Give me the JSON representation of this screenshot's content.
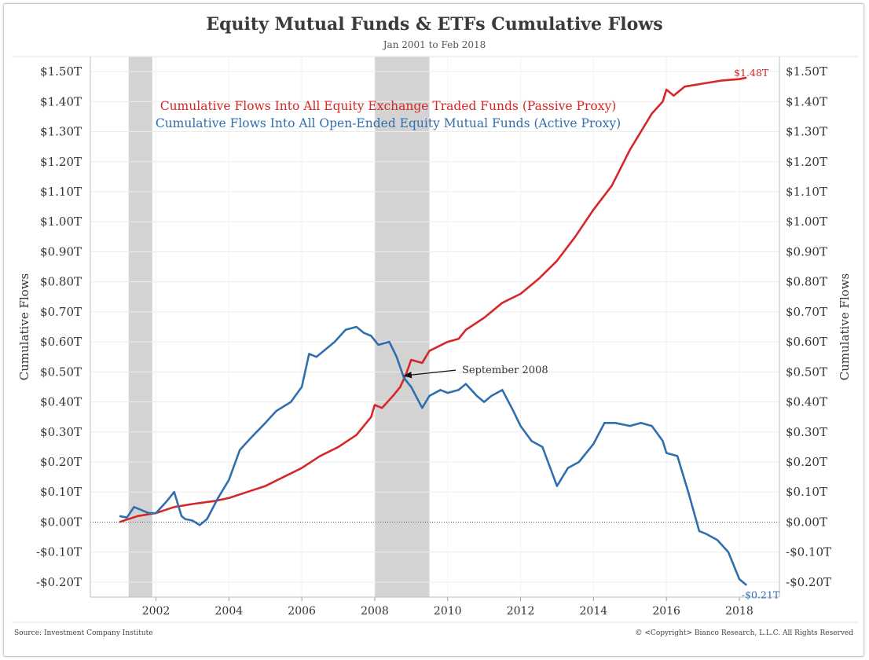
{
  "title": "Equity Mutual Funds & ETFs Cumulative Flows",
  "subtitle": "Jan 2001 to Feb 2018",
  "source": "Source: Investment Company Institute",
  "copyright": "© <Copyright> Bianco Research, L.L.C. All Rights Reserved",
  "colors": {
    "passive": "#d62728",
    "active": "#2f6fae",
    "recession": "#d3d3d3"
  },
  "chart_data": {
    "type": "line",
    "ylabel": "Cumulative Flows",
    "ylim": [
      -0.25,
      1.55
    ],
    "xlim": [
      2000.2,
      2019.1
    ],
    "grid": true,
    "y_ticks": [
      -0.2,
      -0.1,
      0.0,
      0.1,
      0.2,
      0.3,
      0.4,
      0.5,
      0.6,
      0.7,
      0.8,
      0.9,
      1.0,
      1.1,
      1.2,
      1.3,
      1.4,
      1.5
    ],
    "y_tick_labels": [
      "-$0.20T",
      "-$0.10T",
      "$0.00T",
      "$0.10T",
      "$0.20T",
      "$0.30T",
      "$0.40T",
      "$0.50T",
      "$0.60T",
      "$0.70T",
      "$0.80T",
      "$0.90T",
      "$1.00T",
      "$1.10T",
      "$1.20T",
      "$1.30T",
      "$1.40T",
      "$1.50T"
    ],
    "x_ticks": [
      2002,
      2004,
      2006,
      2008,
      2010,
      2012,
      2014,
      2016,
      2018
    ],
    "x_tick_labels": [
      "2002",
      "2004",
      "2006",
      "2008",
      "2010",
      "2012",
      "2014",
      "2016",
      "2018"
    ],
    "recessions": [
      [
        2001.25,
        2001.9
      ],
      [
        2007.99,
        2009.5
      ]
    ],
    "series": [
      {
        "name": "Cumulative Flows Into All Equity Exchange Traded Funds (Passive Proxy)",
        "color": "#d62728",
        "x": [
          2001.0,
          2001.5,
          2002.0,
          2002.5,
          2003.0,
          2003.3,
          2003.6,
          2004.0,
          2004.5,
          2005.0,
          2005.5,
          2006.0,
          2006.5,
          2007.0,
          2007.5,
          2007.9,
          2008.0,
          2008.2,
          2008.5,
          2008.7,
          2008.85,
          2009.0,
          2009.3,
          2009.5,
          2010.0,
          2010.3,
          2010.5,
          2011.0,
          2011.5,
          2012.0,
          2012.5,
          2013.0,
          2013.5,
          2014.0,
          2014.5,
          2015.0,
          2015.3,
          2015.6,
          2015.9,
          2016.0,
          2016.2,
          2016.5,
          2017.0,
          2017.5,
          2018.0,
          2018.2
        ],
        "values": [
          0.0,
          0.02,
          0.03,
          0.05,
          0.06,
          0.065,
          0.07,
          0.08,
          0.1,
          0.12,
          0.15,
          0.18,
          0.22,
          0.25,
          0.29,
          0.35,
          0.39,
          0.38,
          0.42,
          0.45,
          0.49,
          0.54,
          0.53,
          0.57,
          0.6,
          0.61,
          0.64,
          0.68,
          0.73,
          0.76,
          0.81,
          0.87,
          0.95,
          1.04,
          1.12,
          1.24,
          1.3,
          1.36,
          1.4,
          1.44,
          1.42,
          1.45,
          1.46,
          1.47,
          1.475,
          1.48
        ],
        "end_label": "$1.48T"
      },
      {
        "name": "Cumulative Flows Into All Open-Ended Equity Mutual Funds (Active Proxy)",
        "color": "#2f6fae",
        "x": [
          2001.0,
          2001.2,
          2001.4,
          2001.6,
          2001.8,
          2002.0,
          2002.3,
          2002.5,
          2002.7,
          2002.8,
          2003.0,
          2003.2,
          2003.4,
          2003.7,
          2004.0,
          2004.3,
          2004.6,
          2005.0,
          2005.3,
          2005.7,
          2006.0,
          2006.2,
          2006.4,
          2006.6,
          2006.9,
          2007.2,
          2007.5,
          2007.7,
          2007.9,
          2008.1,
          2008.4,
          2008.6,
          2008.8,
          2009.0,
          2009.3,
          2009.5,
          2009.8,
          2010.0,
          2010.3,
          2010.5,
          2010.8,
          2011.0,
          2011.2,
          2011.5,
          2011.8,
          2012.0,
          2012.3,
          2012.6,
          2013.0,
          2013.3,
          2013.6,
          2014.0,
          2014.3,
          2014.6,
          2015.0,
          2015.3,
          2015.6,
          2015.9,
          2016.0,
          2016.3,
          2016.6,
          2016.9,
          2017.1,
          2017.4,
          2017.7,
          2018.0,
          2018.2
        ],
        "values": [
          0.02,
          0.015,
          0.05,
          0.04,
          0.03,
          0.03,
          0.07,
          0.1,
          0.02,
          0.01,
          0.005,
          -0.01,
          0.01,
          0.08,
          0.14,
          0.24,
          0.28,
          0.33,
          0.37,
          0.4,
          0.45,
          0.56,
          0.55,
          0.57,
          0.6,
          0.64,
          0.65,
          0.63,
          0.62,
          0.59,
          0.6,
          0.55,
          0.48,
          0.45,
          0.38,
          0.42,
          0.44,
          0.43,
          0.44,
          0.46,
          0.42,
          0.4,
          0.42,
          0.44,
          0.37,
          0.32,
          0.27,
          0.25,
          0.12,
          0.18,
          0.2,
          0.26,
          0.33,
          0.33,
          0.32,
          0.33,
          0.32,
          0.27,
          0.23,
          0.22,
          0.1,
          -0.03,
          -0.04,
          -0.06,
          -0.1,
          -0.19,
          -0.21
        ],
        "end_label": "-$0.21T"
      }
    ],
    "annotations": [
      {
        "text": "September 2008",
        "x": 2008.72,
        "y": 0.49
      }
    ]
  }
}
